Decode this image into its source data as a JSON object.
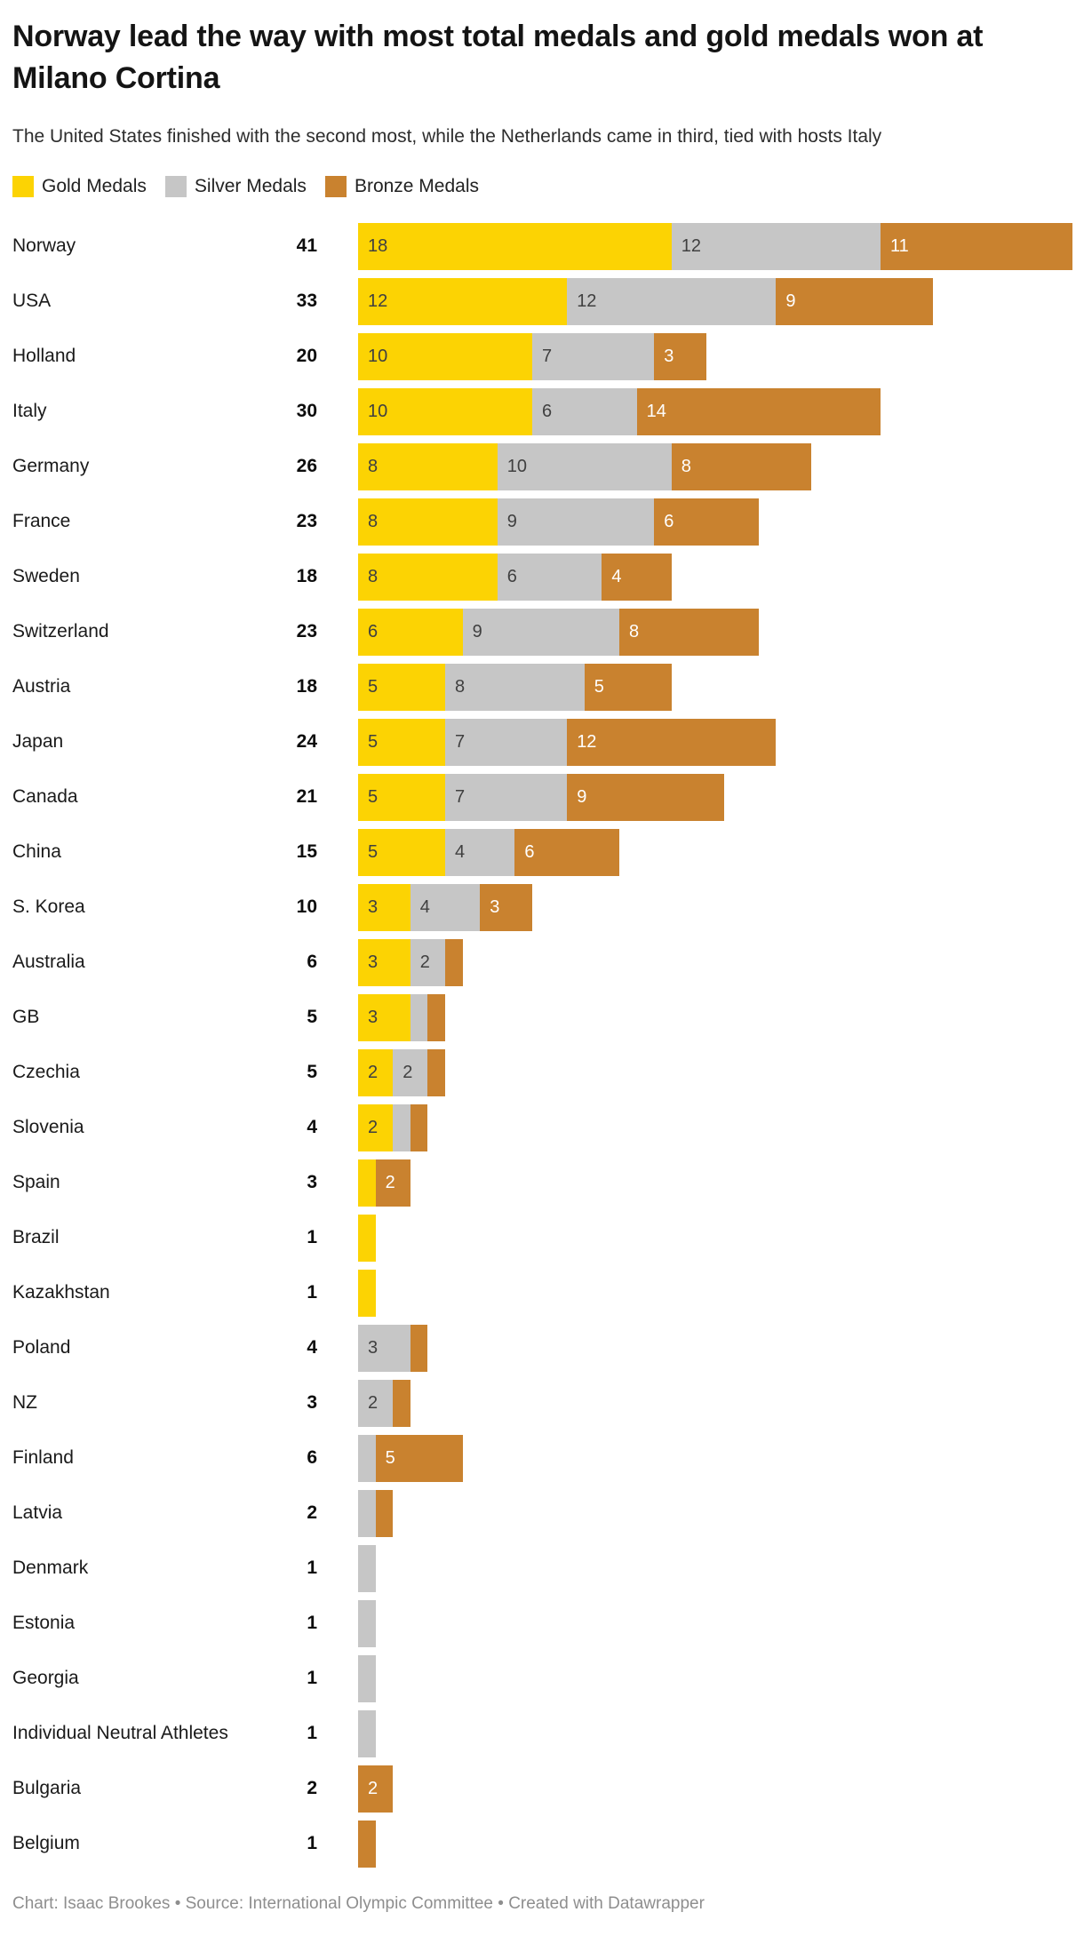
{
  "header": {
    "title": "Norway lead the way with most total medals and gold medals won at Milano Cortina",
    "subtitle": "The United States finished with the second most, while the Netherlands came in third, tied with hosts Italy"
  },
  "legend": [
    {
      "label": "Gold Medals",
      "color": "#FCD303"
    },
    {
      "label": "Silver Medals",
      "color": "#C6C6C6"
    },
    {
      "label": "Bronze Medals",
      "color": "#C9822F"
    }
  ],
  "colors": {
    "gold": "#FCD303",
    "silver": "#C6C6C6",
    "bronze": "#C9822F",
    "label_dark": "#404040",
    "label_light": "#ffffff"
  },
  "footer": {
    "text": "Chart: Isaac Brookes • Source: International Olympic Committee • Created with Datawrapper"
  },
  "chart_data": {
    "type": "bar",
    "orientation": "horizontal",
    "stacked": true,
    "grid": false,
    "legend_position": "top",
    "title": "Norway lead the way with most total medals and gold medals won at Milano Cortina",
    "subtitle": "The United States finished with the second most, while the Netherlands came in third, tied with hosts Italy",
    "series_names": [
      "Gold Medals",
      "Silver Medals",
      "Bronze Medals"
    ],
    "value_label_rule": "segment labels shown when value >= 2; dark text on gold/silver, white text on bronze",
    "rows": [
      {
        "country": "Norway",
        "total": 41,
        "gold": 18,
        "silver": 12,
        "bronze": 11
      },
      {
        "country": "USA",
        "total": 33,
        "gold": 12,
        "silver": 12,
        "bronze": 9
      },
      {
        "country": "Holland",
        "total": 20,
        "gold": 10,
        "silver": 7,
        "bronze": 3
      },
      {
        "country": "Italy",
        "total": 30,
        "gold": 10,
        "silver": 6,
        "bronze": 14
      },
      {
        "country": "Germany",
        "total": 26,
        "gold": 8,
        "silver": 10,
        "bronze": 8
      },
      {
        "country": "France",
        "total": 23,
        "gold": 8,
        "silver": 9,
        "bronze": 6
      },
      {
        "country": "Sweden",
        "total": 18,
        "gold": 8,
        "silver": 6,
        "bronze": 4
      },
      {
        "country": "Switzerland",
        "total": 23,
        "gold": 6,
        "silver": 9,
        "bronze": 8
      },
      {
        "country": "Austria",
        "total": 18,
        "gold": 5,
        "silver": 8,
        "bronze": 5
      },
      {
        "country": "Japan",
        "total": 24,
        "gold": 5,
        "silver": 7,
        "bronze": 12
      },
      {
        "country": "Canada",
        "total": 21,
        "gold": 5,
        "silver": 7,
        "bronze": 9
      },
      {
        "country": "China",
        "total": 15,
        "gold": 5,
        "silver": 4,
        "bronze": 6
      },
      {
        "country": "S. Korea",
        "total": 10,
        "gold": 3,
        "silver": 4,
        "bronze": 3
      },
      {
        "country": "Australia",
        "total": 6,
        "gold": 3,
        "silver": 2,
        "bronze": 1
      },
      {
        "country": "GB",
        "total": 5,
        "gold": 3,
        "silver": 1,
        "bronze": 1
      },
      {
        "country": "Czechia",
        "total": 5,
        "gold": 2,
        "silver": 2,
        "bronze": 1
      },
      {
        "country": "Slovenia",
        "total": 4,
        "gold": 2,
        "silver": 1,
        "bronze": 1
      },
      {
        "country": "Spain",
        "total": 3,
        "gold": 1,
        "silver": 0,
        "bronze": 2
      },
      {
        "country": "Brazil",
        "total": 1,
        "gold": 1,
        "silver": 0,
        "bronze": 0
      },
      {
        "country": "Kazakhstan",
        "total": 1,
        "gold": 1,
        "silver": 0,
        "bronze": 0
      },
      {
        "country": "Poland",
        "total": 4,
        "gold": 0,
        "silver": 3,
        "bronze": 1
      },
      {
        "country": "NZ",
        "total": 3,
        "gold": 0,
        "silver": 2,
        "bronze": 1
      },
      {
        "country": "Finland",
        "total": 6,
        "gold": 0,
        "silver": 1,
        "bronze": 5
      },
      {
        "country": "Latvia",
        "total": 2,
        "gold": 0,
        "silver": 1,
        "bronze": 1
      },
      {
        "country": "Denmark",
        "total": 1,
        "gold": 0,
        "silver": 1,
        "bronze": 0
      },
      {
        "country": "Estonia",
        "total": 1,
        "gold": 0,
        "silver": 1,
        "bronze": 0
      },
      {
        "country": "Georgia",
        "total": 1,
        "gold": 0,
        "silver": 1,
        "bronze": 0
      },
      {
        "country": "Individual Neutral Athletes",
        "total": 1,
        "gold": 0,
        "silver": 1,
        "bronze": 0
      },
      {
        "country": "Bulgaria",
        "total": 2,
        "gold": 0,
        "silver": 0,
        "bronze": 2
      },
      {
        "country": "Belgium",
        "total": 1,
        "gold": 0,
        "silver": 0,
        "bronze": 1
      }
    ]
  }
}
